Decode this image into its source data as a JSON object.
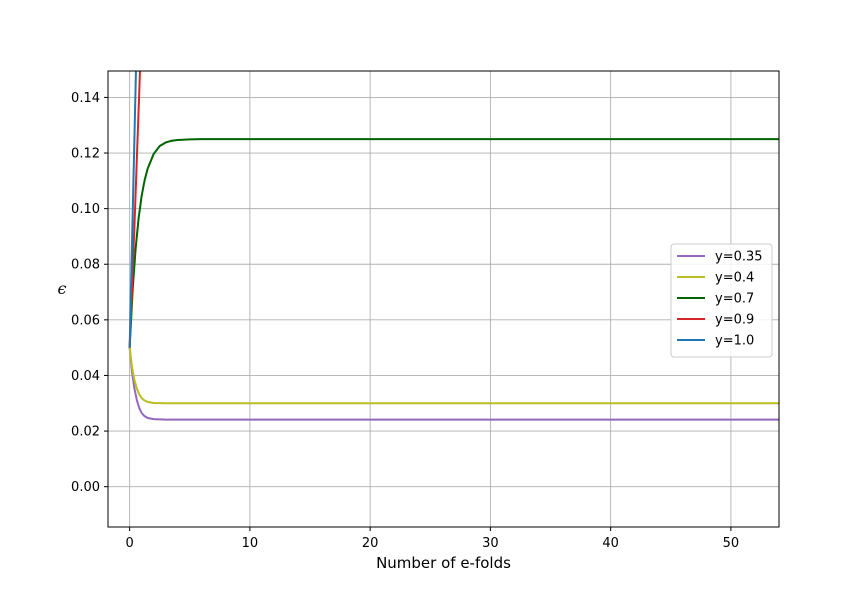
{
  "chart_data": {
    "type": "line",
    "title": "",
    "xlabel": "Number of e-folds",
    "ylabel": "ϵ",
    "xlim": [
      -1.8,
      54
    ],
    "ylim": [
      -0.0145,
      0.1495
    ],
    "xticks": [
      0,
      10,
      20,
      30,
      40,
      50
    ],
    "yticks": [
      0.0,
      0.02,
      0.04,
      0.06,
      0.08,
      0.1,
      0.12,
      0.14
    ],
    "ytick_labels": [
      "0.00",
      "0.02",
      "0.04",
      "0.06",
      "0.08",
      "0.10",
      "0.12",
      "0.14"
    ],
    "grid": true,
    "legend_position": "center-right",
    "series": [
      {
        "name": "y=0.35",
        "color": "#9467bd",
        "x": [
          0,
          0.2,
          0.4,
          0.6,
          0.8,
          1.0,
          1.2,
          1.5,
          2.0,
          3.0,
          5.0,
          10,
          20,
          30,
          40,
          50,
          54
        ],
        "y": [
          0.05,
          0.0412,
          0.0352,
          0.0311,
          0.0283,
          0.0265,
          0.0255,
          0.0247,
          0.0243,
          0.0241,
          0.0241,
          0.0241,
          0.0241,
          0.0241,
          0.0241,
          0.0241,
          0.0241
        ]
      },
      {
        "name": "y=0.4",
        "color": "#bcbd22",
        "x": [
          0,
          0.2,
          0.4,
          0.6,
          0.8,
          1.0,
          1.2,
          1.5,
          2.0,
          3.0,
          5.0,
          10,
          20,
          30,
          40,
          50,
          54
        ],
        "y": [
          0.05,
          0.0429,
          0.0383,
          0.0352,
          0.0332,
          0.0319,
          0.0311,
          0.0305,
          0.0301,
          0.03,
          0.03,
          0.03,
          0.03,
          0.03,
          0.03,
          0.03,
          0.03
        ]
      },
      {
        "name": "y=0.7",
        "color": "#006400",
        "x": [
          0,
          0.25,
          0.5,
          0.75,
          1.0,
          1.25,
          1.5,
          2.0,
          2.5,
          3.0,
          3.5,
          4.0,
          5.0,
          6.0,
          10,
          20,
          30,
          40,
          50,
          54
        ],
        "y": [
          0.05,
          0.0708,
          0.0858,
          0.0967,
          0.1046,
          0.1103,
          0.1144,
          0.1197,
          0.1225,
          0.1238,
          0.1244,
          0.1247,
          0.1249,
          0.125,
          0.125,
          0.125,
          0.125,
          0.125,
          0.125,
          0.125
        ]
      },
      {
        "name": "y=0.9",
        "color": "#d62728",
        "x": [
          0,
          0.1,
          0.2,
          0.3,
          0.4,
          0.5,
          0.6,
          0.7,
          0.8,
          0.9
        ],
        "y": [
          0.05,
          0.061,
          0.072,
          0.083,
          0.094,
          0.106,
          0.118,
          0.13,
          0.142,
          0.155
        ]
      },
      {
        "name": "y=1.0",
        "color": "#1f77b4",
        "x": [
          0,
          0.1,
          0.2,
          0.3,
          0.4,
          0.5,
          0.55
        ],
        "y": [
          0.05,
          0.069,
          0.088,
          0.107,
          0.126,
          0.145,
          0.155
        ]
      }
    ]
  }
}
